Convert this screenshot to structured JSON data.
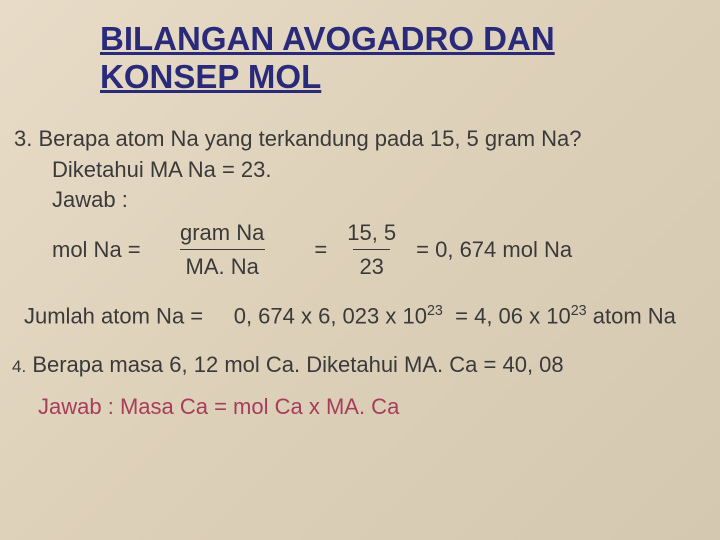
{
  "title_line1": "BILANGAN  AVOGADRO DAN",
  "title_line2": "KONSEP MOL",
  "q3": {
    "num": "3.",
    "line1": "Berapa atom Na yang terkandung pada 15, 5 gram Na?",
    "line2": "Diketahui MA Na = 23.",
    "jawab": "Jawab :",
    "mol_label": "mol Na =",
    "frac1_num": "gram Na",
    "frac1_den": "MA. Na",
    "eq1": "=",
    "frac2_num": "15, 5",
    "frac2_den": "23",
    "result1": "= 0, 674 mol Na",
    "atom_label": "Jumlah atom Na  =",
    "atom_calc_a": "0, 674 x 6, 023 x 10",
    "exp1": "23",
    "atom_eq": "=",
    "atom_calc_b": "4, 06 x 10",
    "exp2": "23",
    "atom_tail": " atom Na"
  },
  "q4": {
    "num": "4.",
    "text": "Berapa masa 6, 12 mol Ca. Diketahui MA. Ca = 40, 08",
    "jawab_label": "Jawab : ",
    "jawab_text": " Masa Ca = mol Ca x MA. Ca"
  },
  "colors": {
    "title": "#2a2a7a",
    "body": "#3a3a3a",
    "jawab4": "#a63d5a",
    "bg_start": "#e8dcc8",
    "bg_end": "#d4c8b0"
  }
}
